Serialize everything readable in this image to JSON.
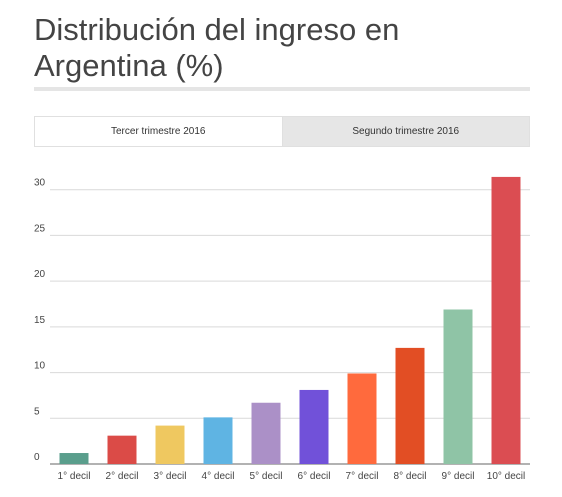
{
  "page": {
    "title": "Distribución del ingreso en Argentina (%)"
  },
  "tabs": [
    {
      "label": "Tercer trimestre 2016",
      "active": true
    },
    {
      "label": "Segundo trimestre 2016",
      "active": false
    }
  ],
  "chart_data": {
    "type": "bar",
    "title": "",
    "xlabel": "",
    "ylabel": "",
    "categories": [
      "1° decil",
      "2° decil",
      "3° decil",
      "4° decil",
      "5° decil",
      "6° decil",
      "7° decil",
      "8° decil",
      "9° decil",
      "10° decil"
    ],
    "values": [
      1.2,
      3.1,
      4.2,
      5.1,
      6.7,
      8.1,
      9.9,
      12.7,
      16.9,
      31.4
    ],
    "colors": [
      "#5a9e8c",
      "#db4b47",
      "#efc860",
      "#5fb4e3",
      "#ab90c7",
      "#7151d9",
      "#ff6a3d",
      "#e24e24",
      "#8fc4a6",
      "#db4d52"
    ],
    "yticks": [
      0,
      5,
      10,
      15,
      20,
      25,
      30
    ],
    "ylim": [
      0,
      31.5
    ],
    "grid": true,
    "legend": "none"
  }
}
